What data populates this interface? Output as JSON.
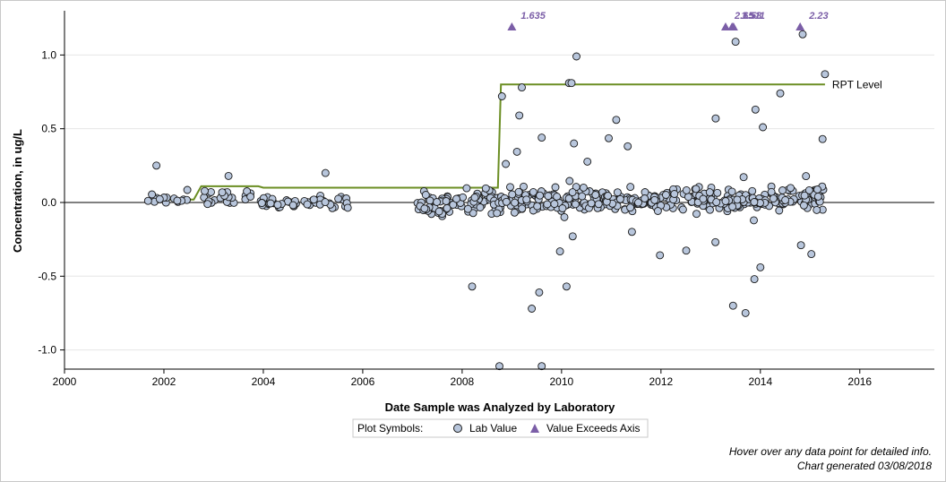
{
  "chart_data": {
    "type": "scatter",
    "title": "",
    "xlabel": "Date Sample was Analyzed by Laboratory",
    "ylabel": "Concentration, in ug/L",
    "xlim": [
      2000,
      2017.5
    ],
    "ylim": [
      -1.13,
      1.3
    ],
    "x_ticks": [
      "2000",
      "2002",
      "2004",
      "2006",
      "2008",
      "2010",
      "2012",
      "2014",
      "2016"
    ],
    "y_ticks": [
      "1.0",
      "0.5",
      "0.0",
      "-0.5",
      "-1.0"
    ],
    "grid": "horizontal",
    "zero_line": true,
    "colors": {
      "marker_fill": "#b8c6dc",
      "marker_stroke": "#1a1a1a",
      "exceed": "#7b5ea7",
      "rpt_line": "#6b8e23",
      "zero_line": "#808080",
      "grid": "#e6e6e6"
    },
    "rpt_level": {
      "label": "RPT Level",
      "steps": [
        {
          "x": 2001.75,
          "y": 0.02
        },
        {
          "x": 2002.6,
          "y": 0.02
        },
        {
          "x": 2002.75,
          "y": 0.11
        },
        {
          "x": 2003.9,
          "y": 0.11
        },
        {
          "x": 2004.0,
          "y": 0.1
        },
        {
          "x": 2008.72,
          "y": 0.1
        },
        {
          "x": 2008.78,
          "y": 0.8
        },
        {
          "x": 2015.3,
          "y": 0.8
        }
      ]
    },
    "exceeds_axis": [
      {
        "x": 2009.0,
        "label": "1.635"
      },
      {
        "x": 2013.3,
        "label": "2.65"
      },
      {
        "x": 2013.43,
        "label": "1.511"
      },
      {
        "x": 2013.46,
        "label": "1.58"
      },
      {
        "x": 2014.8,
        "label": "2.23"
      }
    ],
    "notable_points": [
      {
        "x": 2001.85,
        "y": 0.25
      },
      {
        "x": 2003.3,
        "y": 0.18
      },
      {
        "x": 2005.25,
        "y": 0.2
      },
      {
        "x": 2008.2,
        "y": -0.57
      },
      {
        "x": 2008.8,
        "y": 0.72
      },
      {
        "x": 2008.75,
        "y": -1.11
      },
      {
        "x": 2009.2,
        "y": 0.78
      },
      {
        "x": 2009.15,
        "y": 0.59
      },
      {
        "x": 2009.6,
        "y": 0.44
      },
      {
        "x": 2009.4,
        "y": -0.72
      },
      {
        "x": 2009.55,
        "y": -0.61
      },
      {
        "x": 2009.6,
        "y": -1.11
      },
      {
        "x": 2010.15,
        "y": 0.81
      },
      {
        "x": 2010.2,
        "y": 0.81
      },
      {
        "x": 2010.3,
        "y": 0.99
      },
      {
        "x": 2010.25,
        "y": 0.4
      },
      {
        "x": 2010.1,
        "y": -0.57
      },
      {
        "x": 2011.1,
        "y": 0.56
      },
      {
        "x": 2013.1,
        "y": 0.57
      },
      {
        "x": 2013.5,
        "y": 1.09
      },
      {
        "x": 2013.45,
        "y": -0.7
      },
      {
        "x": 2013.7,
        "y": -0.75
      },
      {
        "x": 2013.9,
        "y": 0.63
      },
      {
        "x": 2013.88,
        "y": -0.52
      },
      {
        "x": 2014.05,
        "y": 0.51
      },
      {
        "x": 2014.0,
        "y": -0.44
      },
      {
        "x": 2014.4,
        "y": 0.74
      },
      {
        "x": 2014.85,
        "y": 1.14
      },
      {
        "x": 2015.3,
        "y": 0.87
      },
      {
        "x": 2015.25,
        "y": 0.43
      }
    ]
  },
  "legend": {
    "title": "Plot Symbols:",
    "items": [
      {
        "label": "Lab Value",
        "symbol": "circle"
      },
      {
        "label": "Value Exceeds Axis",
        "symbol": "triangle"
      }
    ]
  },
  "footer": {
    "hover_note": "Hover over any data point for detailed info.",
    "generated": "Chart generated 03/08/2018"
  }
}
